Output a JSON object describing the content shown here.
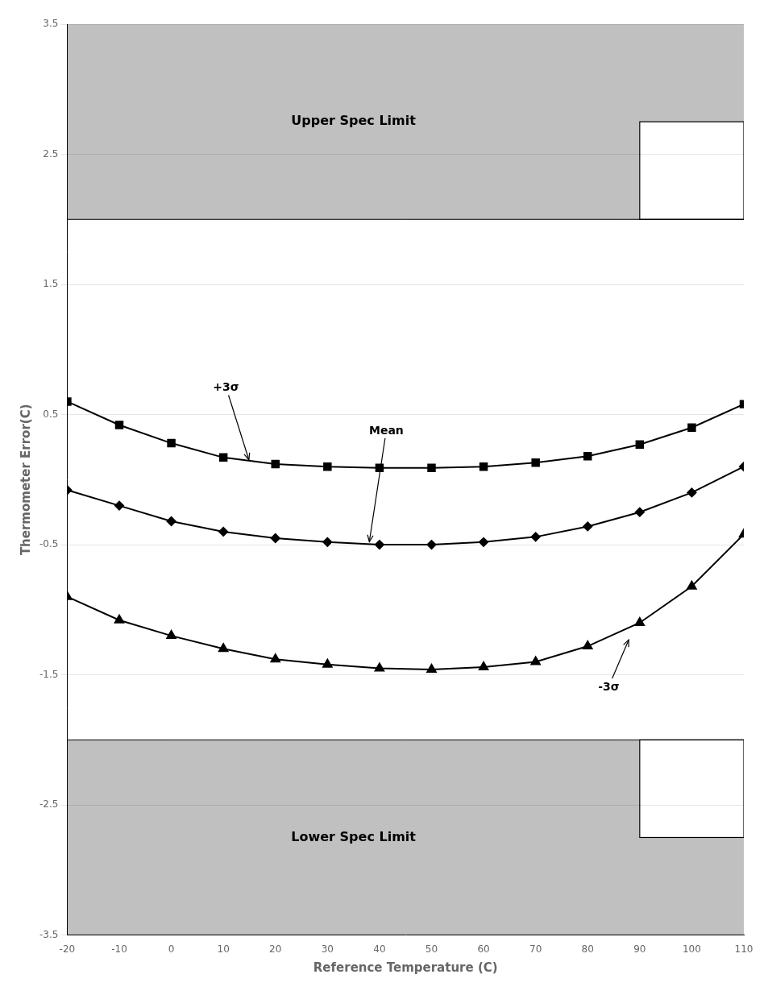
{
  "chart_data": {
    "type": "line",
    "xlabel": "Reference Temperature (C)",
    "ylabel": "Thermometer Error(C)",
    "x": [
      -20,
      -10,
      0,
      10,
      20,
      30,
      40,
      50,
      60,
      70,
      80,
      90,
      100,
      110
    ],
    "series": [
      {
        "name": "+3σ",
        "color": "#000000",
        "marker": "square",
        "values": [
          0.6,
          0.42,
          0.28,
          0.17,
          0.12,
          0.1,
          0.09,
          0.09,
          0.1,
          0.13,
          0.18,
          0.27,
          0.4,
          0.58
        ]
      },
      {
        "name": "Mean",
        "color": "#000000",
        "marker": "diamond",
        "values": [
          -0.08,
          -0.2,
          -0.32,
          -0.4,
          -0.45,
          -0.48,
          -0.5,
          -0.5,
          -0.48,
          -0.44,
          -0.36,
          -0.25,
          -0.1,
          0.1
        ]
      },
      {
        "name": "-3σ",
        "color": "#000000",
        "marker": "triangle",
        "values": [
          -0.9,
          -1.08,
          -1.2,
          -1.3,
          -1.38,
          -1.42,
          -1.45,
          -1.46,
          -1.44,
          -1.4,
          -1.28,
          -1.1,
          -0.82,
          -0.42
        ]
      }
    ],
    "xlim": [
      -20,
      110
    ],
    "ylim": [
      -3.5,
      3.5
    ],
    "xticks": [
      -20,
      -10,
      0,
      10,
      20,
      30,
      40,
      50,
      60,
      70,
      80,
      90,
      100,
      110
    ],
    "yticks": [
      -3.5,
      -2.5,
      -1.5,
      -0.5,
      0.5,
      1.5,
      2.5,
      3.5
    ],
    "grid": "y",
    "spec_limits": {
      "color": "#c0c0c0",
      "upper": {
        "value": 2.0,
        "label": "Upper Spec Limit"
      },
      "lower": {
        "value": -2.0,
        "label": "Lower Spec Limit"
      },
      "cutout_x": 90,
      "cutout_upper_top": 2.75,
      "cutout_lower_bottom": -2.75
    },
    "annotations": [
      {
        "text": "+3σ",
        "x": 15,
        "y": 0.14,
        "text_x": 8,
        "text_y": 0.68
      },
      {
        "text": "Mean",
        "x": 38,
        "y": -0.49,
        "text_x": 38,
        "text_y": 0.35
      },
      {
        "text": "-3σ",
        "x": 88,
        "y": -1.22,
        "text_x": 82,
        "text_y": -1.62
      }
    ]
  }
}
